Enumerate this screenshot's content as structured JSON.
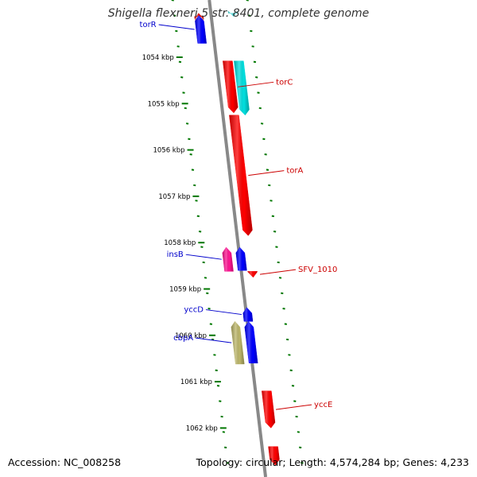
{
  "title": "Shigella flexneri 5 str. 8401, complete genome",
  "footer": {
    "accession": "Accession: NC_008258",
    "summary": "Topology: circular; Length: 4,574,284 bp; Genes: 4,233"
  },
  "ticks": [
    {
      "label": "1054 kbp",
      "pos": 1054
    },
    {
      "label": "1055 kbp",
      "pos": 1055
    },
    {
      "label": "1056 kbp",
      "pos": 1056
    },
    {
      "label": "1057 kbp",
      "pos": 1057
    },
    {
      "label": "1058 kbp",
      "pos": 1058
    },
    {
      "label": "1059 kbp",
      "pos": 1059
    },
    {
      "label": "1060 kbp",
      "pos": 1060
    },
    {
      "label": "1061 kbp",
      "pos": 1061
    },
    {
      "label": "1062 kbp",
      "pos": 1062
    }
  ],
  "features": [
    {
      "name": "",
      "start": 1053.05,
      "end": 1053.2,
      "strand": "forward",
      "color": "#ff9999"
    },
    {
      "name": "",
      "start": 1053.05,
      "end": 1053.12,
      "strand": "forward",
      "color": "#e00000"
    },
    {
      "name": "",
      "start": 1053.05,
      "end": 1053.12,
      "strand": "reverse",
      "color": "#55e0e0"
    },
    {
      "name": "torR",
      "start": 1053.1,
      "end": 1053.7,
      "strand": "forward",
      "color": "#0000ff"
    },
    {
      "name": "torC",
      "start": 1054.08,
      "end": 1055.2,
      "strand": "reverse",
      "color": "#ff0000"
    },
    {
      "name": "",
      "start": 1054.08,
      "end": 1055.25,
      "strand": "reverse",
      "color": "#00e0e0"
    },
    {
      "name": "torA",
      "start": 1055.25,
      "end": 1057.85,
      "strand": "reverse",
      "color": "#ff0000"
    },
    {
      "name": "insB",
      "start": 1058.1,
      "end": 1058.62,
      "strand": "forward",
      "color": "#ff1493"
    },
    {
      "name": "",
      "start": 1058.1,
      "end": 1058.6,
      "strand": "forward",
      "color": "#0000ff"
    },
    {
      "name": "SFV_1010",
      "start": 1058.62,
      "end": 1058.75,
      "strand": "reverse",
      "color": "#ff0000"
    },
    {
      "name": "yccD",
      "start": 1059.4,
      "end": 1059.7,
      "strand": "forward",
      "color": "#0000ff"
    },
    {
      "name": "",
      "start": 1059.7,
      "end": 1060.6,
      "strand": "forward",
      "color": "#0000ff"
    },
    {
      "name": "cbpA",
      "start": 1059.7,
      "end": 1060.62,
      "strand": "forward",
      "color": "#bdb76b"
    },
    {
      "name": "yccE",
      "start": 1061.2,
      "end": 1062.0,
      "strand": "reverse",
      "color": "#ff0000"
    },
    {
      "name": "",
      "start": 1062.4,
      "end": 1062.8,
      "strand": "reverse",
      "color": "#ff0000"
    }
  ],
  "label_colors": {
    "forward": "#0000cc",
    "reverse": "#cc0000",
    "tick": "#007700",
    "backbone": "#888888"
  }
}
